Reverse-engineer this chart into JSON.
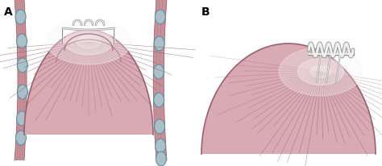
{
  "bg_color": "#ffffff",
  "label_A": "A",
  "label_B": "B",
  "label_fontsize": 10,
  "muscle_pink_light": "#d8aab4",
  "muscle_pink_dark": "#9a6070",
  "muscle_pink_mid": "#c08090",
  "muscle_pink_fill": "#c89098",
  "muscle_line_color": "#8a5565",
  "suture_white": "#f0f0f0",
  "suture_gray": "#909090",
  "highlight_white": "#f8f4f5",
  "oval_color": "#aabfc8",
  "oval_outline": "#6090a0",
  "rib_strip_color": "#b87878",
  "rib_dark": "#7a5060"
}
